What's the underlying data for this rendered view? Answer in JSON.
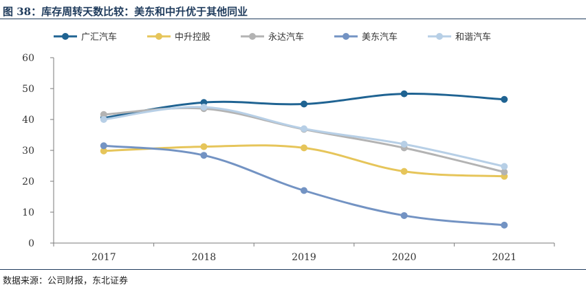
{
  "figure": {
    "title": "图 38：库存周转天数比较：美东和中升优于其他同业",
    "source": "数据来源：公司财报，东北证券"
  },
  "chart_data": {
    "type": "line",
    "title": "",
    "xlabel": "",
    "ylabel": "",
    "categories": [
      "2017",
      "2018",
      "2019",
      "2020",
      "2021"
    ],
    "ylim": [
      0,
      60
    ],
    "yticks": [
      0,
      10,
      20,
      30,
      40,
      50,
      60
    ],
    "grid": false,
    "legend_position": "top",
    "series": [
      {
        "name": "广汇汽车",
        "color": "#1f6392",
        "values": [
          40.5,
          45.5,
          45.0,
          48.3,
          46.5
        ]
      },
      {
        "name": "中升控股",
        "color": "#e6c55a",
        "values": [
          29.8,
          31.2,
          30.8,
          23.2,
          21.6
        ]
      },
      {
        "name": "永达汽车",
        "color": "#b3b3b3",
        "values": [
          41.6,
          43.5,
          36.8,
          30.8,
          23.0
        ]
      },
      {
        "name": "美东汽车",
        "color": "#7393c3",
        "values": [
          31.5,
          28.4,
          17.0,
          8.9,
          5.8
        ]
      },
      {
        "name": "和谐汽车",
        "color": "#b7cfe6",
        "values": [
          40.0,
          44.0,
          37.0,
          32.0,
          24.8
        ]
      }
    ]
  }
}
